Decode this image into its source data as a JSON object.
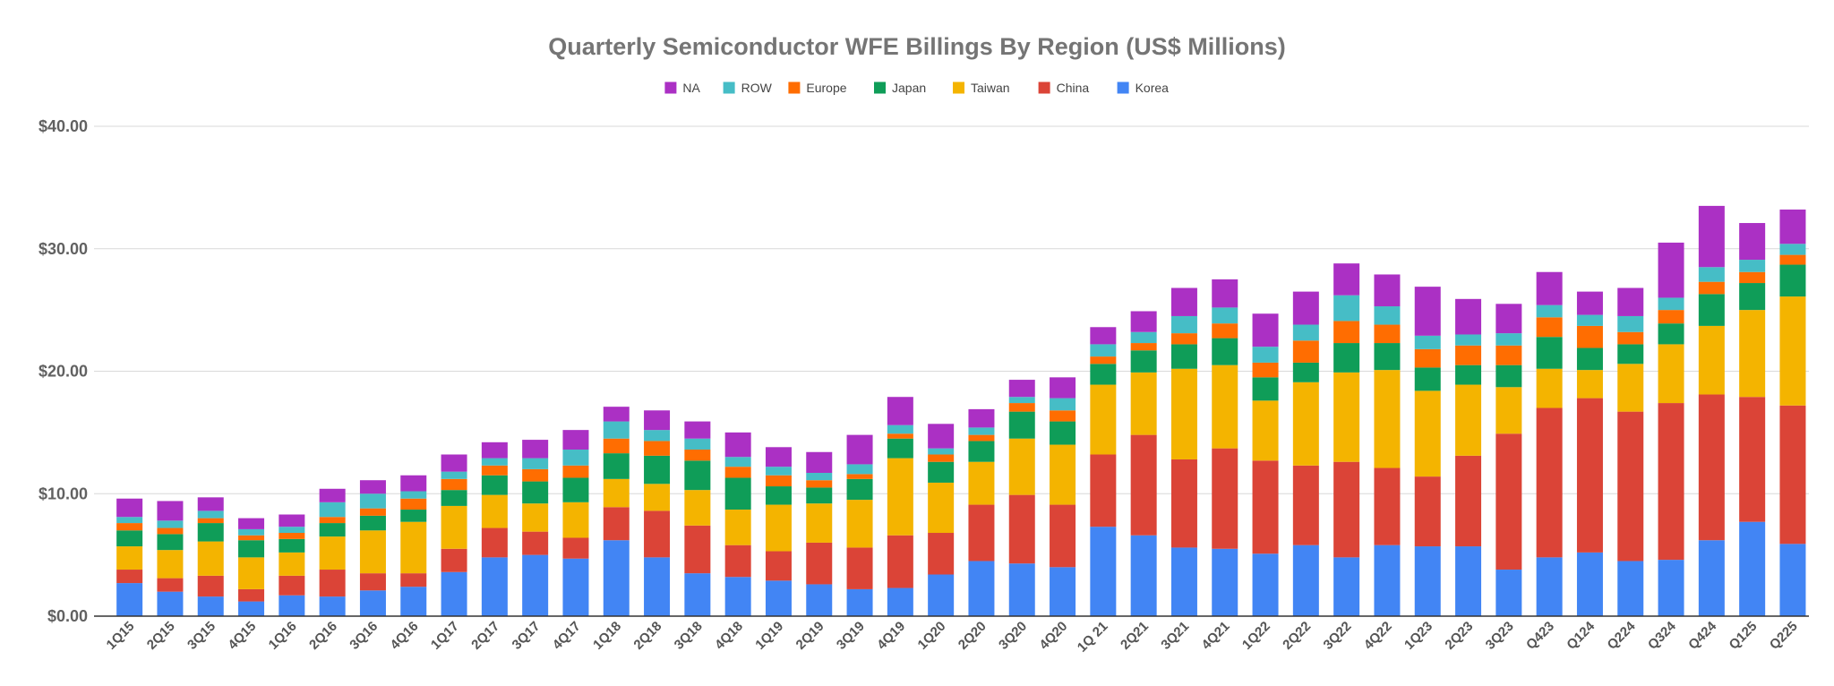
{
  "chart_data": {
    "type": "bar",
    "stacked": true,
    "title": "Quarterly Semiconductor WFE Billings By Region (US$ Millions)",
    "xlabel": "",
    "ylabel": "",
    "ylim": [
      0,
      40
    ],
    "yticks": [
      0,
      10,
      20,
      30,
      40
    ],
    "ytick_labels": [
      "$0.00",
      "$10.00",
      "$20.00",
      "$30.00",
      "$40.00"
    ],
    "grid": true,
    "legend_position": "top-center",
    "legend_order": [
      "NA",
      "ROW",
      "Europe",
      "Japan",
      "Taiwan",
      "China",
      "Korea"
    ],
    "categories": [
      "1Q15",
      "2Q15",
      "3Q15",
      "4Q15",
      "1Q16",
      "2Q16",
      "3Q16",
      "4Q16",
      "1Q17",
      "2Q17",
      "3Q17",
      "4Q17",
      "1Q18",
      "2Q18",
      "3Q18",
      "4Q18",
      "1Q19",
      "2Q19",
      "3Q19",
      "4Q19",
      "1Q20",
      "2Q20",
      "3Q20",
      "4Q20",
      "1Q 21",
      "2Q21",
      "3Q21",
      "4Q21",
      "1Q22",
      "2Q22",
      "3Q22",
      "4Q22",
      "1Q23",
      "2Q23",
      "3Q23",
      "Q423",
      "Q124",
      "Q224",
      "Q324",
      "Q424",
      "Q125",
      "Q225"
    ],
    "series": [
      {
        "name": "Korea",
        "color": "#4285F4",
        "values": [
          2.7,
          2.0,
          1.6,
          1.2,
          1.7,
          1.6,
          2.1,
          2.4,
          3.6,
          4.8,
          5.0,
          4.7,
          6.2,
          4.8,
          3.5,
          3.2,
          2.9,
          2.6,
          2.2,
          2.3,
          3.4,
          4.5,
          4.3,
          4.0,
          7.3,
          6.6,
          5.6,
          5.5,
          5.1,
          5.8,
          4.8,
          5.8,
          5.7,
          5.7,
          3.8,
          4.8,
          5.2,
          4.5,
          4.6,
          6.2,
          7.7,
          5.9
        ]
      },
      {
        "name": "China",
        "color": "#DB4437",
        "values": [
          1.1,
          1.1,
          1.7,
          1.0,
          1.6,
          2.2,
          1.4,
          1.1,
          1.9,
          2.4,
          1.9,
          1.7,
          2.7,
          3.8,
          3.9,
          2.6,
          2.4,
          3.4,
          3.4,
          4.3,
          3.4,
          4.6,
          5.6,
          5.1,
          5.9,
          8.2,
          7.2,
          8.2,
          7.6,
          6.5,
          7.8,
          6.3,
          5.7,
          7.4,
          11.1,
          12.2,
          12.6,
          12.2,
          12.8,
          11.9,
          10.2,
          11.3
        ]
      },
      {
        "name": "Taiwan",
        "color": "#F4B400",
        "values": [
          1.9,
          2.3,
          2.8,
          2.6,
          1.9,
          2.7,
          3.5,
          4.2,
          3.5,
          2.7,
          2.3,
          2.9,
          2.3,
          2.2,
          2.9,
          2.9,
          3.8,
          3.2,
          3.9,
          6.3,
          4.1,
          3.5,
          4.6,
          4.9,
          5.7,
          5.1,
          7.4,
          6.8,
          4.9,
          6.8,
          7.3,
          8.0,
          7.0,
          5.8,
          3.8,
          3.2,
          2.3,
          3.9,
          4.8,
          5.6,
          7.1,
          8.9
        ]
      },
      {
        "name": "Japan",
        "color": "#0F9D58",
        "values": [
          1.3,
          1.3,
          1.5,
          1.4,
          1.1,
          1.1,
          1.2,
          1.0,
          1.3,
          1.6,
          1.8,
          2.0,
          2.1,
          2.3,
          2.4,
          2.6,
          1.5,
          1.3,
          1.7,
          1.6,
          1.7,
          1.7,
          2.2,
          1.9,
          1.7,
          1.8,
          2.0,
          2.2,
          1.9,
          1.6,
          2.4,
          2.2,
          1.9,
          1.6,
          1.8,
          2.6,
          1.8,
          1.6,
          1.7,
          2.6,
          2.2,
          2.6
        ]
      },
      {
        "name": "Europe",
        "color": "#FF6D01",
        "values": [
          0.6,
          0.5,
          0.4,
          0.4,
          0.5,
          0.5,
          0.6,
          0.9,
          0.9,
          0.8,
          1.0,
          1.0,
          1.2,
          1.2,
          0.9,
          0.9,
          0.9,
          0.6,
          0.4,
          0.4,
          0.6,
          0.5,
          0.7,
          0.9,
          0.6,
          0.6,
          0.9,
          1.2,
          1.2,
          1.8,
          1.8,
          1.5,
          1.5,
          1.6,
          1.6,
          1.6,
          1.8,
          1.0,
          1.1,
          1.0,
          0.9,
          0.8
        ]
      },
      {
        "name": "ROW",
        "color": "#46BDC6",
        "values": [
          0.5,
          0.6,
          0.6,
          0.5,
          0.5,
          1.2,
          1.2,
          0.6,
          0.6,
          0.6,
          0.9,
          1.3,
          1.4,
          0.9,
          0.9,
          0.8,
          0.7,
          0.6,
          0.8,
          0.7,
          0.5,
          0.6,
          0.5,
          1.0,
          1.0,
          0.9,
          1.4,
          1.3,
          1.3,
          1.3,
          2.1,
          1.5,
          1.1,
          0.9,
          1.0,
          1.0,
          0.9,
          1.3,
          1.0,
          1.2,
          1.0,
          0.9
        ]
      },
      {
        "name": "NA",
        "color": "#AB30C4",
        "values": [
          1.5,
          1.6,
          1.1,
          0.9,
          1.0,
          1.1,
          1.1,
          1.3,
          1.4,
          1.3,
          1.5,
          1.6,
          1.2,
          1.6,
          1.4,
          2.0,
          1.6,
          1.7,
          2.4,
          2.3,
          2.0,
          1.5,
          1.4,
          1.7,
          1.4,
          1.7,
          2.3,
          2.3,
          2.7,
          2.7,
          2.6,
          2.6,
          4.0,
          2.9,
          2.4,
          2.7,
          1.9,
          2.3,
          4.5,
          5.0,
          3.0,
          2.8
        ]
      }
    ]
  }
}
